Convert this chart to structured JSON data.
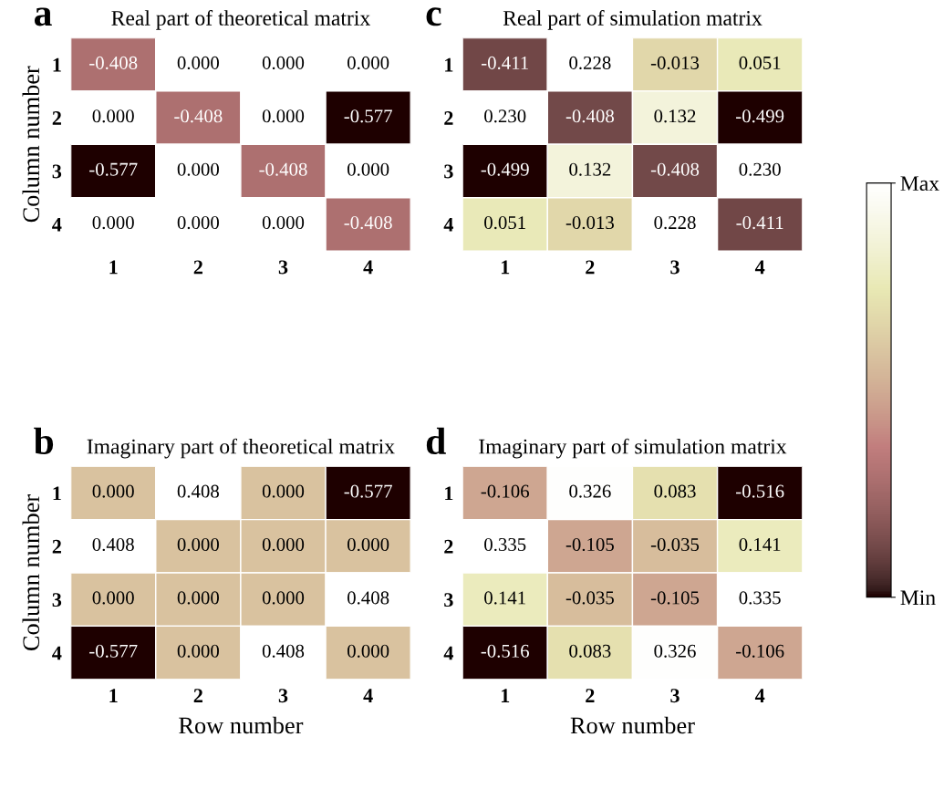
{
  "chart_data": [
    {
      "type": "heatmap",
      "title": "Real part of theoretical matrix",
      "ylabel": "Column number",
      "annotations": [
        "a"
      ],
      "categories": [
        "1",
        "2",
        "3",
        "4"
      ],
      "y_categories": [
        "1",
        "2",
        "3",
        "4"
      ],
      "cells": [
        [
          -0.408,
          0.0,
          0.0,
          0.0
        ],
        [
          0.0,
          -0.408,
          0.0,
          -0.577
        ],
        [
          -0.577,
          0.0,
          -0.408,
          0.0
        ],
        [
          0.0,
          0.0,
          0.0,
          -0.408
        ]
      ],
      "cell_labels": [
        [
          "-0.408",
          "0.000",
          "0.000",
          "0.000"
        ],
        [
          "0.000",
          "-0.408",
          "0.000",
          "-0.577"
        ],
        [
          "-0.577",
          "0.000",
          "-0.408",
          "0.000"
        ],
        [
          "0.000",
          "0.000",
          "0.000",
          "-0.408"
        ]
      ]
    },
    {
      "type": "heatmap",
      "title": "Imaginary part of theoretical matrix",
      "ylabel": "Column number",
      "xlabel": "Row number",
      "annotations": [
        "b"
      ],
      "categories": [
        "1",
        "2",
        "3",
        "4"
      ],
      "y_categories": [
        "1",
        "2",
        "3",
        "4"
      ],
      "cells": [
        [
          0.0,
          0.408,
          0.0,
          -0.577
        ],
        [
          0.408,
          0.0,
          0.0,
          0.0
        ],
        [
          0.0,
          0.0,
          0.0,
          0.408
        ],
        [
          -0.577,
          0.0,
          0.408,
          0.0
        ]
      ],
      "cell_labels": [
        [
          "0.000",
          "0.408",
          "0.000",
          "-0.577"
        ],
        [
          "0.408",
          "0.000",
          "0.000",
          "0.000"
        ],
        [
          "0.000",
          "0.000",
          "0.000",
          "0.408"
        ],
        [
          "-0.577",
          "0.000",
          "0.408",
          "0.000"
        ]
      ]
    },
    {
      "type": "heatmap",
      "title": "Real part of simulation matrix",
      "annotations": [
        "c"
      ],
      "categories": [
        "1",
        "2",
        "3",
        "4"
      ],
      "y_categories": [
        "1",
        "2",
        "3",
        "4"
      ],
      "clim": [
        -0.499,
        0.23
      ],
      "cticks": [
        {
          "value": -0.499,
          "label": "Min"
        },
        {
          "value": 0.23,
          "label": "Max"
        }
      ],
      "cells": [
        [
          -0.411,
          0.228,
          -0.013,
          0.051
        ],
        [
          0.23,
          -0.408,
          0.132,
          -0.499
        ],
        [
          -0.499,
          0.132,
          -0.408,
          0.23
        ],
        [
          0.051,
          -0.013,
          0.228,
          -0.411
        ]
      ],
      "cell_labels": [
        [
          "-0.411",
          "0.228",
          "-0.013",
          "0.051"
        ],
        [
          "0.230",
          "-0.408",
          "0.132",
          "-0.499"
        ],
        [
          "-0.499",
          "0.132",
          "-0.408",
          "0.230"
        ],
        [
          "0.051",
          "-0.013",
          "0.228",
          "-0.411"
        ]
      ]
    },
    {
      "type": "heatmap",
      "title": "Imaginary part of simulation matrix",
      "xlabel": "Row number",
      "annotations": [
        "d"
      ],
      "categories": [
        "1",
        "2",
        "3",
        "4"
      ],
      "y_categories": [
        "1",
        "2",
        "3",
        "4"
      ],
      "cells": [
        [
          -0.106,
          0.326,
          0.083,
          -0.516
        ],
        [
          0.335,
          -0.105,
          -0.035,
          0.141
        ],
        [
          0.141,
          -0.035,
          -0.105,
          0.335
        ],
        [
          -0.516,
          0.083,
          0.326,
          -0.106
        ]
      ],
      "cell_labels": [
        [
          "-0.106",
          "0.326",
          "0.083",
          "-0.516"
        ],
        [
          "0.335",
          "-0.105",
          "-0.035",
          "0.141"
        ],
        [
          "0.141",
          "-0.035",
          "-0.105",
          "0.335"
        ],
        [
          "-0.516",
          "0.083",
          "0.326",
          "-0.106"
        ]
      ]
    }
  ]
}
